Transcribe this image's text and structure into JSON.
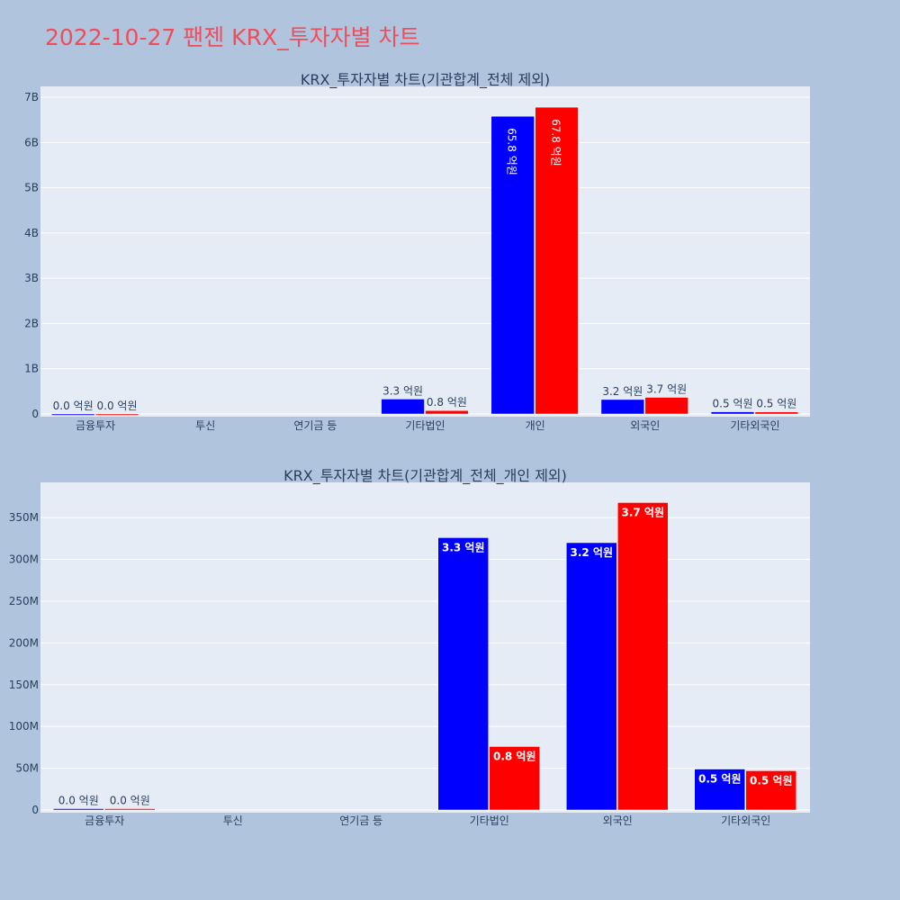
{
  "page": {
    "title": "2022-10-27 팬젠 KRX_투자자별 차트"
  },
  "colors": {
    "background": "#b0c4de",
    "plot_background": "#e5ecf6",
    "grid": "#ffffff",
    "title": "#ef4d5b",
    "text": "#2a3f5f",
    "buy": "#0000ff",
    "sell": "#ff0000"
  },
  "chart_data": [
    {
      "type": "bar",
      "title": "KRX_투자자별 차트(기관합계_전체 제외)",
      "categories": [
        "금융투자",
        "투신",
        "연기금 등",
        "기타법인",
        "개인",
        "외국인",
        "기타외국인"
      ],
      "series": [
        {
          "color": "#0000ff",
          "values": [
            0,
            0,
            0,
            330000000,
            6580000000,
            320000000,
            48000000
          ],
          "labels": [
            "0.0 억원",
            "",
            "",
            "3.3 억원",
            "65.8 억원",
            "3.2 억원",
            "0.5 억원"
          ]
        },
        {
          "color": "#ff0000",
          "values": [
            0,
            0,
            0,
            76000000,
            6780000000,
            368000000,
            46000000
          ],
          "labels": [
            "0.0 억원",
            "",
            "",
            "0.8 억원",
            "67.8 억원",
            "3.7 억원",
            "0.5 억원"
          ]
        }
      ],
      "ylim": [
        0,
        7200000000
      ],
      "yticks": [
        0,
        1000000000,
        2000000000,
        3000000000,
        4000000000,
        5000000000,
        6000000000,
        7000000000
      ],
      "ytick_labels": [
        "0",
        "1B",
        "2B",
        "3B",
        "4B",
        "5B",
        "6B",
        "7B"
      ],
      "grid": true,
      "label_style": "outside-or-rotated"
    },
    {
      "type": "bar",
      "title": "KRX_투자자별 차트(기관합계_전체_개인 제외)",
      "categories": [
        "금융투자",
        "투신",
        "연기금 등",
        "기타법인",
        "외국인",
        "기타외국인"
      ],
      "series": [
        {
          "color": "#0000ff",
          "values": [
            1000000,
            0,
            0,
            326000000,
            320000000,
            49000000
          ],
          "labels": [
            "0.0 억원",
            "",
            "",
            "3.3 억원",
            "3.2 억원",
            "0.5 억원"
          ]
        },
        {
          "color": "#ff0000",
          "values": [
            1000000,
            0,
            0,
            76000000,
            368000000,
            47000000
          ],
          "labels": [
            "0.0 억원",
            "",
            "",
            "0.8 억원",
            "3.7 억원",
            "0.5 억원"
          ]
        }
      ],
      "ylim": [
        0,
        390000000
      ],
      "yticks": [
        0,
        50000000,
        100000000,
        150000000,
        200000000,
        250000000,
        300000000,
        350000000
      ],
      "ytick_labels": [
        "0",
        "50M",
        "100M",
        "150M",
        "200M",
        "250M",
        "300M",
        "350M"
      ],
      "grid": true,
      "label_style": "inside-bold"
    }
  ]
}
